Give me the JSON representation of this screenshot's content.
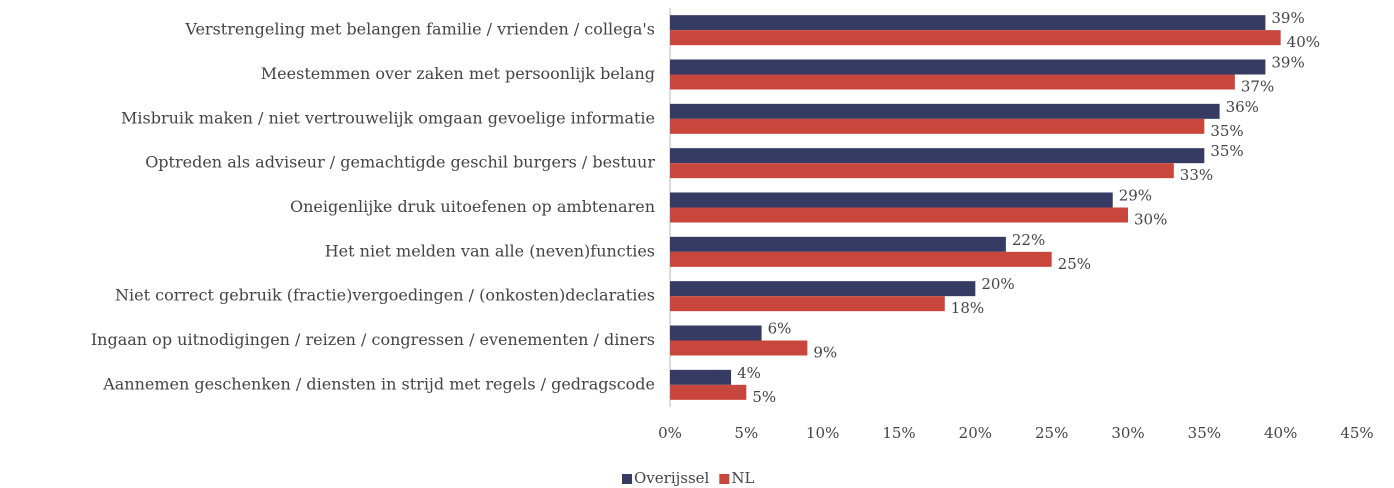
{
  "chart_data": {
    "type": "bar",
    "orientation": "horizontal",
    "categories": [
      "Verstrengeling met belangen familie / vrienden / collega's",
      "Meestemmen over zaken met persoonlijk belang",
      "Misbruik maken / niet vertrouwelijk omgaan gevoelige informatie",
      "Optreden als adviseur / gemachtigde geschil burgers / bestuur",
      "Oneigenlijke druk uitoefenen op ambtenaren",
      "Het niet melden van alle (neven)functies",
      "Niet correct gebruik (fractie)vergoedingen / (onkosten)declaraties",
      "Ingaan op uitnodigingen / reizen / congressen / evenementen / diners",
      "Aannemen geschenken / diensten in strijd met regels / gedragscode"
    ],
    "series": [
      {
        "name": "Overijssel",
        "color": "#353b62",
        "values": [
          39,
          39,
          36,
          35,
          29,
          22,
          20,
          6,
          4
        ],
        "value_labels": [
          "39%",
          "39%",
          "36%",
          "35%",
          "29%",
          "22%",
          "20%",
          "6%",
          "4%"
        ]
      },
      {
        "name": "NL",
        "color": "#c9463d",
        "values": [
          40,
          37,
          35,
          33,
          30,
          25,
          18,
          9,
          5
        ],
        "value_labels": [
          "40%",
          "37%",
          "35%",
          "33%",
          "30%",
          "25%",
          "18%",
          "9%",
          "5%"
        ]
      }
    ],
    "xlim": [
      0,
      45
    ],
    "xticks": [
      {
        "value": 0,
        "label": "0%"
      },
      {
        "value": 5,
        "label": "5%"
      },
      {
        "value": 10,
        "label": "10%"
      },
      {
        "value": 15,
        "label": "15%"
      },
      {
        "value": 20,
        "label": "20%"
      },
      {
        "value": 25,
        "label": "25%"
      },
      {
        "value": 30,
        "label": "30%"
      },
      {
        "value": 35,
        "label": "35%"
      },
      {
        "value": 40,
        "label": "40%"
      },
      {
        "value": 45,
        "label": "45%"
      }
    ],
    "legend": "bottom"
  }
}
